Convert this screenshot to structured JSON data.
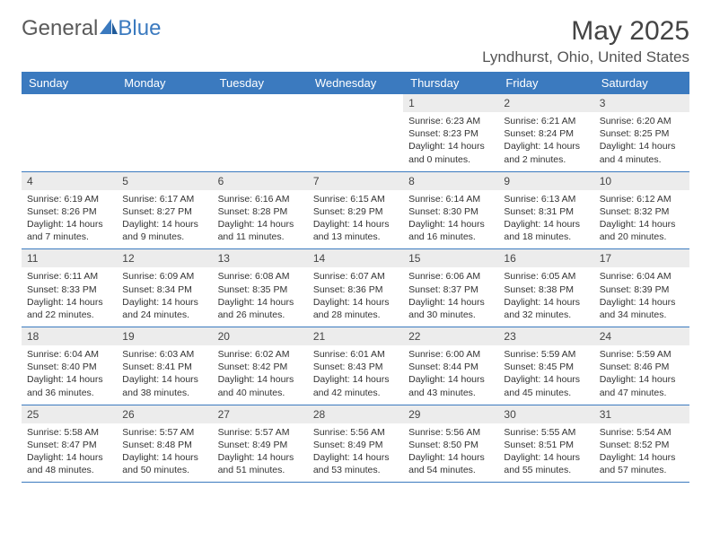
{
  "brand": {
    "part1": "General",
    "part2": "Blue"
  },
  "title": "May 2025",
  "location": "Lyndhurst, Ohio, United States",
  "colors": {
    "accent": "#3b7abf",
    "row_bg": "#ececec",
    "text": "#333333"
  },
  "weekdays": [
    "Sunday",
    "Monday",
    "Tuesday",
    "Wednesday",
    "Thursday",
    "Friday",
    "Saturday"
  ],
  "weeks": [
    [
      null,
      null,
      null,
      null,
      {
        "n": "1",
        "sr": "6:23 AM",
        "ss": "8:23 PM",
        "dl": "14 hours and 0 minutes."
      },
      {
        "n": "2",
        "sr": "6:21 AM",
        "ss": "8:24 PM",
        "dl": "14 hours and 2 minutes."
      },
      {
        "n": "3",
        "sr": "6:20 AM",
        "ss": "8:25 PM",
        "dl": "14 hours and 4 minutes."
      }
    ],
    [
      {
        "n": "4",
        "sr": "6:19 AM",
        "ss": "8:26 PM",
        "dl": "14 hours and 7 minutes."
      },
      {
        "n": "5",
        "sr": "6:17 AM",
        "ss": "8:27 PM",
        "dl": "14 hours and 9 minutes."
      },
      {
        "n": "6",
        "sr": "6:16 AM",
        "ss": "8:28 PM",
        "dl": "14 hours and 11 minutes."
      },
      {
        "n": "7",
        "sr": "6:15 AM",
        "ss": "8:29 PM",
        "dl": "14 hours and 13 minutes."
      },
      {
        "n": "8",
        "sr": "6:14 AM",
        "ss": "8:30 PM",
        "dl": "14 hours and 16 minutes."
      },
      {
        "n": "9",
        "sr": "6:13 AM",
        "ss": "8:31 PM",
        "dl": "14 hours and 18 minutes."
      },
      {
        "n": "10",
        "sr": "6:12 AM",
        "ss": "8:32 PM",
        "dl": "14 hours and 20 minutes."
      }
    ],
    [
      {
        "n": "11",
        "sr": "6:11 AM",
        "ss": "8:33 PM",
        "dl": "14 hours and 22 minutes."
      },
      {
        "n": "12",
        "sr": "6:09 AM",
        "ss": "8:34 PM",
        "dl": "14 hours and 24 minutes."
      },
      {
        "n": "13",
        "sr": "6:08 AM",
        "ss": "8:35 PM",
        "dl": "14 hours and 26 minutes."
      },
      {
        "n": "14",
        "sr": "6:07 AM",
        "ss": "8:36 PM",
        "dl": "14 hours and 28 minutes."
      },
      {
        "n": "15",
        "sr": "6:06 AM",
        "ss": "8:37 PM",
        "dl": "14 hours and 30 minutes."
      },
      {
        "n": "16",
        "sr": "6:05 AM",
        "ss": "8:38 PM",
        "dl": "14 hours and 32 minutes."
      },
      {
        "n": "17",
        "sr": "6:04 AM",
        "ss": "8:39 PM",
        "dl": "14 hours and 34 minutes."
      }
    ],
    [
      {
        "n": "18",
        "sr": "6:04 AM",
        "ss": "8:40 PM",
        "dl": "14 hours and 36 minutes."
      },
      {
        "n": "19",
        "sr": "6:03 AM",
        "ss": "8:41 PM",
        "dl": "14 hours and 38 minutes."
      },
      {
        "n": "20",
        "sr": "6:02 AM",
        "ss": "8:42 PM",
        "dl": "14 hours and 40 minutes."
      },
      {
        "n": "21",
        "sr": "6:01 AM",
        "ss": "8:43 PM",
        "dl": "14 hours and 42 minutes."
      },
      {
        "n": "22",
        "sr": "6:00 AM",
        "ss": "8:44 PM",
        "dl": "14 hours and 43 minutes."
      },
      {
        "n": "23",
        "sr": "5:59 AM",
        "ss": "8:45 PM",
        "dl": "14 hours and 45 minutes."
      },
      {
        "n": "24",
        "sr": "5:59 AM",
        "ss": "8:46 PM",
        "dl": "14 hours and 47 minutes."
      }
    ],
    [
      {
        "n": "25",
        "sr": "5:58 AM",
        "ss": "8:47 PM",
        "dl": "14 hours and 48 minutes."
      },
      {
        "n": "26",
        "sr": "5:57 AM",
        "ss": "8:48 PM",
        "dl": "14 hours and 50 minutes."
      },
      {
        "n": "27",
        "sr": "5:57 AM",
        "ss": "8:49 PM",
        "dl": "14 hours and 51 minutes."
      },
      {
        "n": "28",
        "sr": "5:56 AM",
        "ss": "8:49 PM",
        "dl": "14 hours and 53 minutes."
      },
      {
        "n": "29",
        "sr": "5:56 AM",
        "ss": "8:50 PM",
        "dl": "14 hours and 54 minutes."
      },
      {
        "n": "30",
        "sr": "5:55 AM",
        "ss": "8:51 PM",
        "dl": "14 hours and 55 minutes."
      },
      {
        "n": "31",
        "sr": "5:54 AM",
        "ss": "8:52 PM",
        "dl": "14 hours and 57 minutes."
      }
    ]
  ],
  "labels": {
    "sunrise": "Sunrise: ",
    "sunset": "Sunset: ",
    "daylight": "Daylight: "
  }
}
